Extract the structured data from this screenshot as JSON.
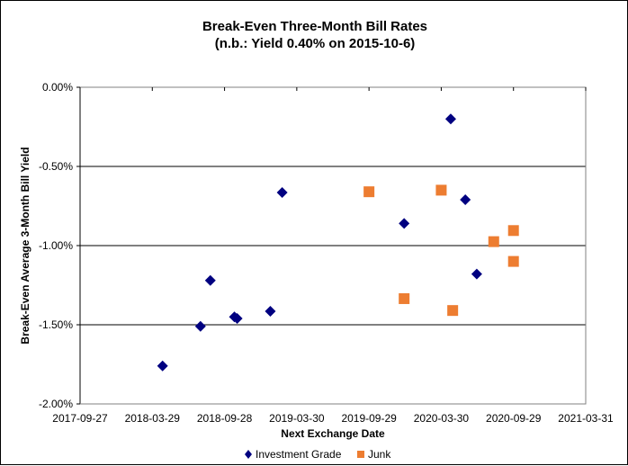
{
  "chart_data": {
    "type": "scatter",
    "title": "Break-Even Three-Month Bill Rates",
    "subtitle": "(n.b.: Yield 0.40% on 2015-10-6)",
    "xlabel": "Next Exchange Date",
    "ylabel": "Break-Even Average 3-Month Bill Yield",
    "xlim": [
      "2017-09-27",
      "2021-03-31"
    ],
    "ylim": [
      -2.0,
      0.0
    ],
    "x_ticks": [
      "2017-09-27",
      "2018-03-29",
      "2018-09-28",
      "2019-03-30",
      "2019-09-29",
      "2020-03-30",
      "2020-09-29",
      "2021-03-31"
    ],
    "y_ticks": [
      0.0,
      -0.5,
      -1.0,
      -1.5,
      -2.0
    ],
    "y_tick_labels": [
      "0.00%",
      "-0.50%",
      "-1.00%",
      "-1.50%",
      "-2.00%"
    ],
    "grid": "horizontal",
    "legend_position": "bottom",
    "series": [
      {
        "name": "Investment Grade",
        "marker": "diamond",
        "color": "#000080",
        "points": [
          [
            "2018-04-24",
            -1.76
          ],
          [
            "2018-07-29",
            -1.51
          ],
          [
            "2018-08-23",
            -1.22
          ],
          [
            "2018-10-23",
            -1.45
          ],
          [
            "2018-10-30",
            -1.46
          ],
          [
            "2019-01-22",
            -1.415
          ],
          [
            "2019-02-21",
            -0.665
          ],
          [
            "2019-12-27",
            -0.86
          ],
          [
            "2020-04-23",
            -0.2
          ],
          [
            "2020-05-30",
            -0.71
          ],
          [
            "2020-06-28",
            -1.18
          ]
        ]
      },
      {
        "name": "Junk",
        "marker": "square",
        "color": "#ED7D31",
        "points": [
          [
            "2019-09-29",
            -0.66
          ],
          [
            "2019-12-27",
            -1.335
          ],
          [
            "2020-03-30",
            -0.65
          ],
          [
            "2020-04-28",
            -1.41
          ],
          [
            "2020-08-10",
            -0.975
          ],
          [
            "2020-09-29",
            -0.905
          ],
          [
            "2020-09-29",
            -1.1
          ]
        ]
      }
    ]
  }
}
